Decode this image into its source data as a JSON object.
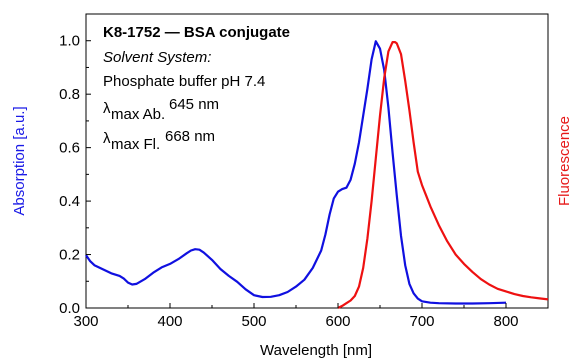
{
  "chart_data": {
    "type": "line",
    "annotation": {
      "title": "K8-1752 — BSA conjugate",
      "solvent_label": "Solvent System:",
      "solvent": "Phosphate buffer pH 7.4",
      "lambda_symbol": "λ",
      "abs_subscript": "max Ab.",
      "abs_value": "645 nm",
      "fl_subscript": "max Fl.",
      "fl_value": "668 nm"
    },
    "xlabel": "Wavelength [nm]",
    "ylabel": "Absorption [a.u.]",
    "y2label": "Fluorescence",
    "xlim": [
      300,
      850
    ],
    "ylim": [
      0,
      1.1
    ],
    "x_ticks": [
      "300",
      "400",
      "500",
      "600",
      "700",
      "800"
    ],
    "y_ticks": [
      "0.0",
      "0.2",
      "0.4",
      "0.6",
      "0.8",
      "1.0"
    ],
    "grid": false,
    "series": [
      {
        "color": "#1010e0",
        "x": [
          300,
          305,
          310,
          320,
          330,
          340,
          345,
          350,
          355,
          360,
          370,
          380,
          390,
          400,
          410,
          420,
          425,
          430,
          435,
          440,
          450,
          460,
          470,
          480,
          490,
          500,
          510,
          520,
          530,
          540,
          550,
          560,
          570,
          580,
          585,
          590,
          595,
          600,
          605,
          610,
          615,
          620,
          625,
          630,
          635,
          640,
          645,
          650,
          655,
          660,
          665,
          670,
          675,
          680,
          685,
          690,
          695,
          700,
          710,
          720,
          740,
          760,
          780,
          800
        ],
        "values": [
          0.198,
          0.175,
          0.16,
          0.145,
          0.13,
          0.12,
          0.11,
          0.095,
          0.088,
          0.09,
          0.108,
          0.132,
          0.152,
          0.165,
          0.183,
          0.205,
          0.215,
          0.22,
          0.218,
          0.208,
          0.18,
          0.146,
          0.12,
          0.098,
          0.07,
          0.048,
          0.041,
          0.042,
          0.048,
          0.06,
          0.08,
          0.106,
          0.15,
          0.215,
          0.275,
          0.35,
          0.41,
          0.435,
          0.445,
          0.45,
          0.48,
          0.54,
          0.62,
          0.72,
          0.82,
          0.93,
          0.998,
          0.97,
          0.89,
          0.75,
          0.58,
          0.42,
          0.27,
          0.16,
          0.09,
          0.055,
          0.035,
          0.025,
          0.02,
          0.018,
          0.017,
          0.017,
          0.018,
          0.02
        ]
      },
      {
        "color": "#ee1111",
        "x": [
          600,
          605,
          610,
          615,
          620,
          625,
          630,
          635,
          640,
          645,
          650,
          655,
          660,
          665,
          668,
          670,
          675,
          680,
          685,
          690,
          695,
          700,
          705,
          710,
          720,
          730,
          740,
          750,
          760,
          770,
          780,
          790,
          800,
          810,
          820,
          830,
          840,
          850
        ],
        "values": [
          0.0,
          0.008,
          0.018,
          0.028,
          0.045,
          0.08,
          0.15,
          0.26,
          0.4,
          0.56,
          0.72,
          0.86,
          0.96,
          0.995,
          0.995,
          0.99,
          0.95,
          0.85,
          0.74,
          0.62,
          0.51,
          0.46,
          0.42,
          0.38,
          0.31,
          0.25,
          0.2,
          0.165,
          0.135,
          0.108,
          0.088,
          0.072,
          0.062,
          0.052,
          0.045,
          0.04,
          0.036,
          0.032
        ]
      }
    ]
  }
}
